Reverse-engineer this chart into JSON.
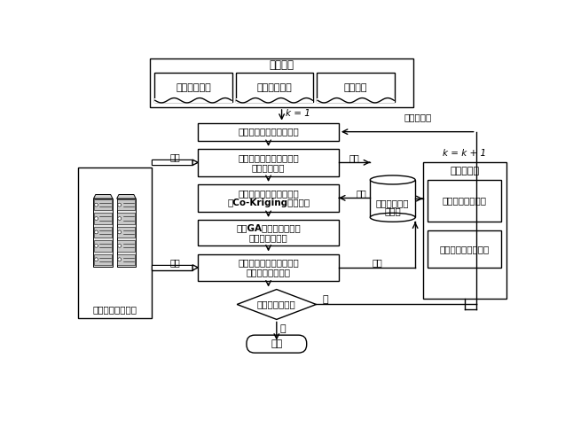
{
  "title": "初始条件",
  "sub1": "优化问题定义",
  "sub2": "优化算法参数",
  "sub3": "分析模型",
  "k1_label": "k／=／1",
  "box_init": "生成初始高低精度样本点",
  "box_calc1_l1": "计算样本点处高低精度分",
  "box_calc1_l2": "析模型响应値",
  "box_cokriging_l1": "构造目标函数和约束函数",
  "box_cokriging_l2": "的Co-Kriging代理模型",
  "box_ga_l1": "采用GA进行全局优化，",
  "box_ga_l2": "获取当前最优解",
  "box_calc2_l1": "计算当前最优解处高低精",
  "box_calc2_l2": "度分析模型响应値",
  "diamond_text": "优化终止条件？",
  "box_output": "输出",
  "db_label_l1": "高低精度样本",
  "db_label_l2": "点集合",
  "left_box_label": "高低精度分析模型",
  "right_title": "双采样方法",
  "right_box1": "基于信颎域的采样",
  "right_box2": "基于预测方差的采样",
  "label_call": "调用",
  "label_save": "保存",
  "label_no": "否",
  "label_yes": "是",
  "label_new_sample": "新增样本点",
  "k_plus": "k = k + 1"
}
